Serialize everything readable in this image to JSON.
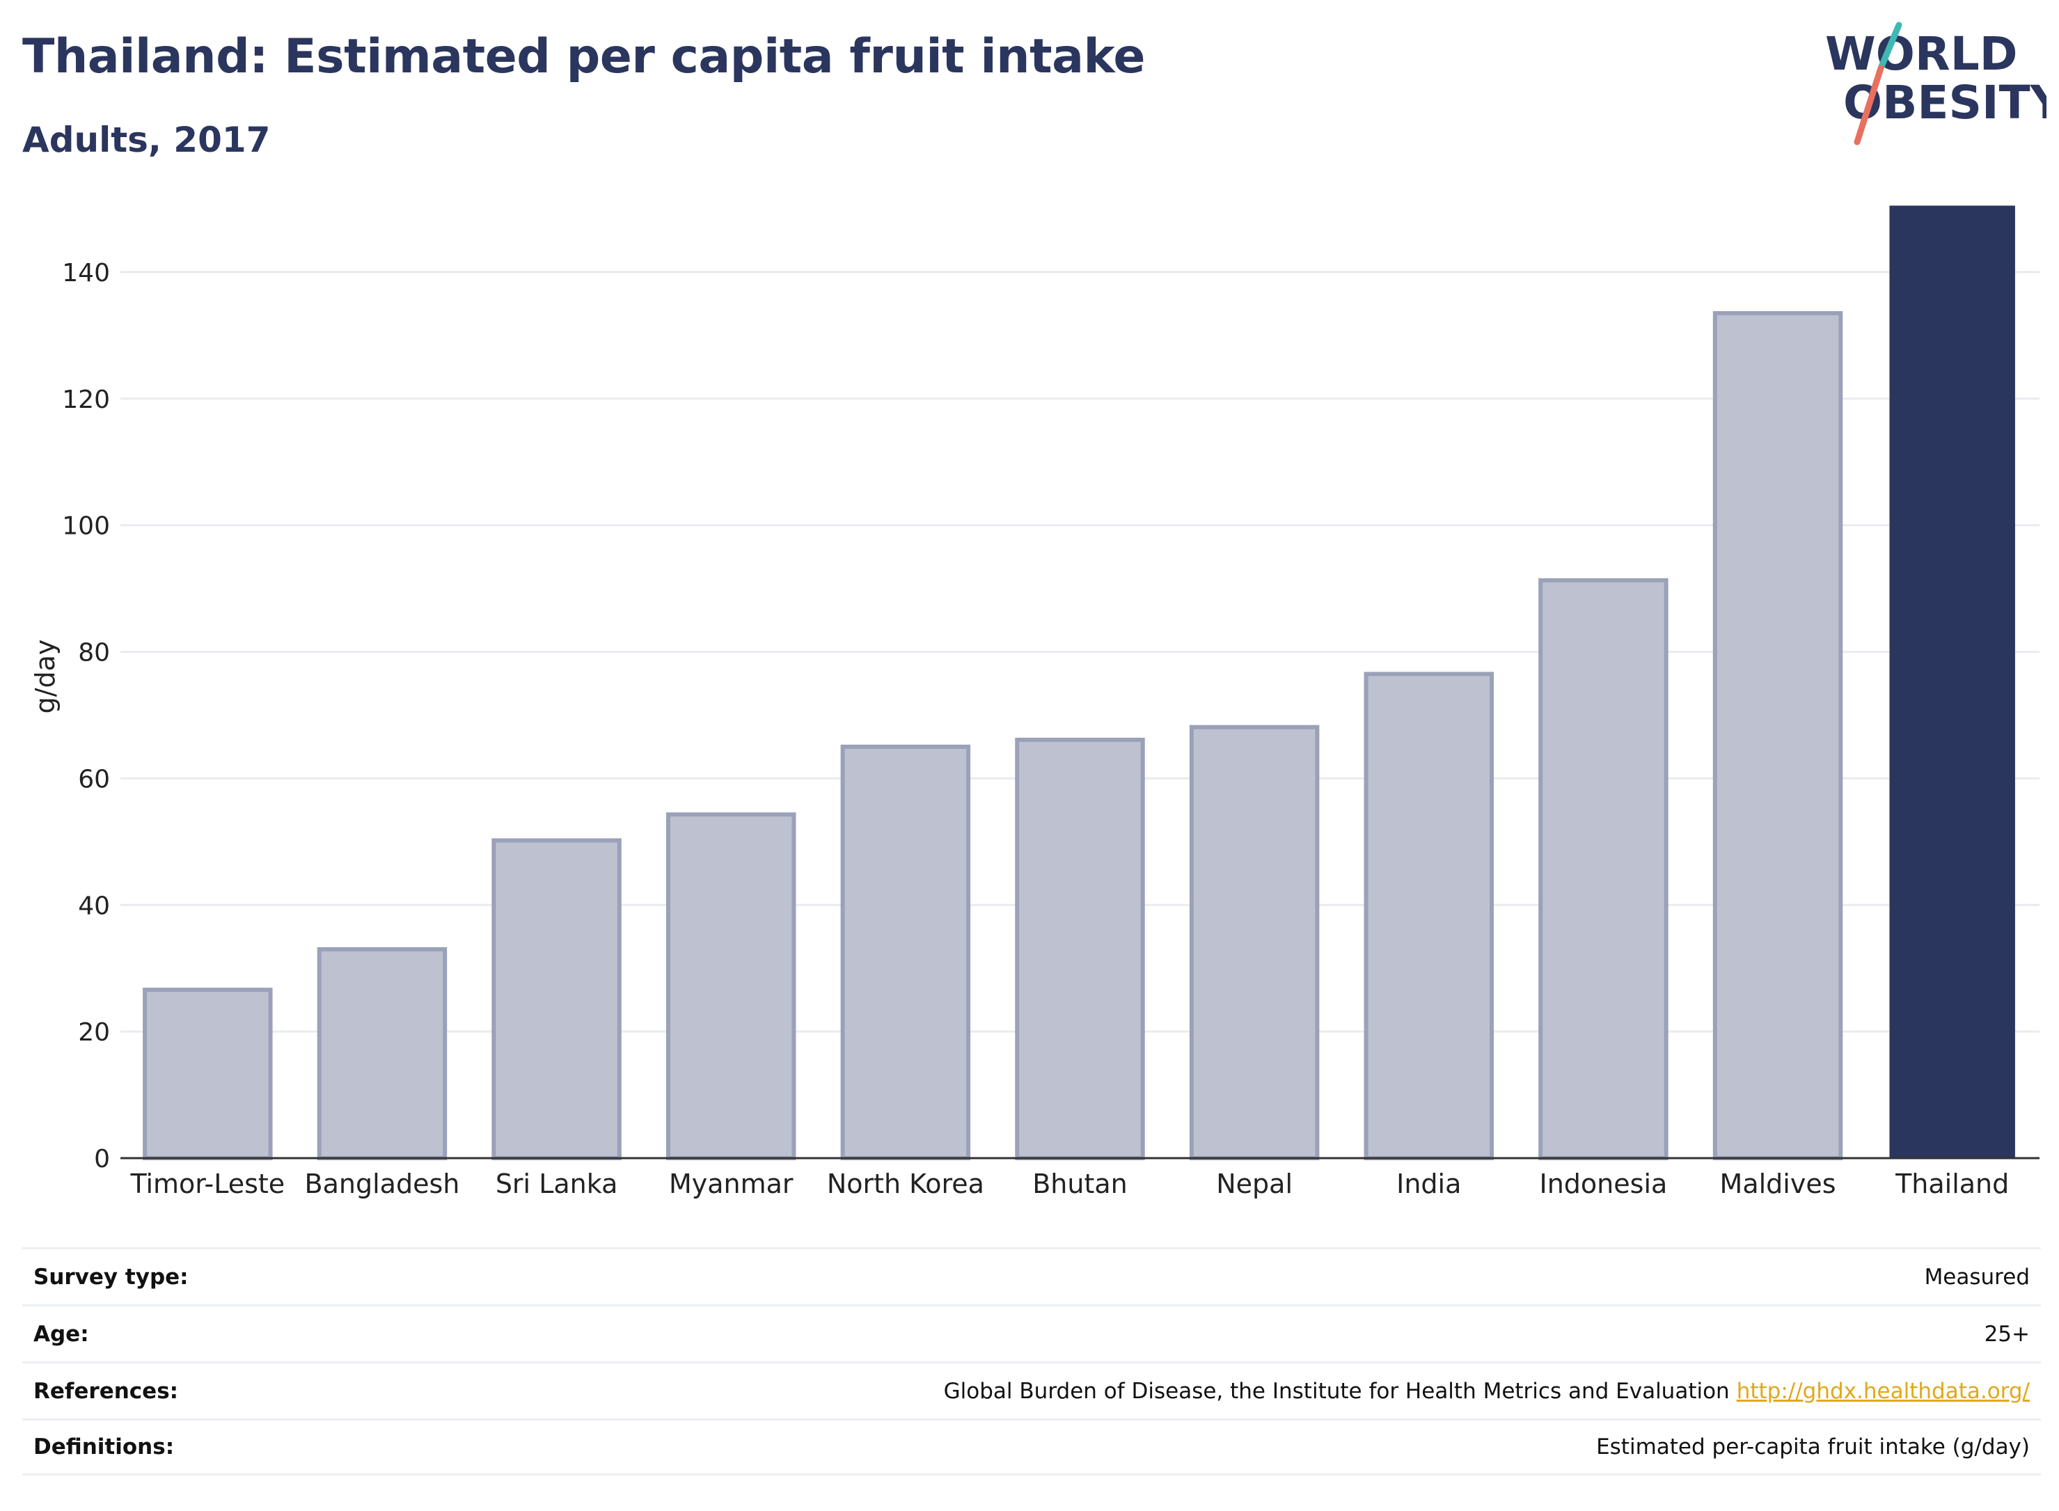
{
  "header": {
    "title": "Thailand: Estimated per capita fruit intake",
    "subtitle": "Adults, 2017",
    "logo_line1": "WORLD",
    "logo_line2": "OBESITY"
  },
  "colors": {
    "highlight": "#2b365e",
    "bar_fill": "#bec2d0",
    "bar_stroke": "#9aa1b8",
    "grid": "#e9ebef",
    "logo_teal": "#3fb8b4",
    "logo_coral": "#e8705e",
    "link": "#e0a81c"
  },
  "chart_data": {
    "type": "bar",
    "title": "Thailand: Estimated per capita fruit intake",
    "subtitle": "Adults, 2017",
    "xlabel": "",
    "ylabel": "g/day",
    "ylim": [
      0,
      150
    ],
    "yticks": [
      0,
      20,
      40,
      60,
      80,
      100,
      120,
      140
    ],
    "grid": true,
    "highlight": "Thailand",
    "categories": [
      "Timor-Leste",
      "Bangladesh",
      "Sri Lanka",
      "Myanmar",
      "North Korea",
      "Bhutan",
      "Nepal",
      "India",
      "Indonesia",
      "Maldives",
      "Thailand"
    ],
    "values": [
      26.6,
      33.0,
      50.2,
      54.3,
      65.0,
      66.1,
      68.1,
      76.5,
      91.3,
      133.5,
      150.5
    ]
  },
  "meta": [
    {
      "label": "Survey type:",
      "value": "Measured"
    },
    {
      "label": "Age:",
      "value": "25+"
    },
    {
      "label": "References:",
      "value": "Global Burden of Disease, the Institute for Health Metrics and Evaluation",
      "link": "http://ghdx.healthdata.org/"
    },
    {
      "label": "Definitions:",
      "value": "Estimated per-capita fruit intake (g/day)"
    }
  ]
}
